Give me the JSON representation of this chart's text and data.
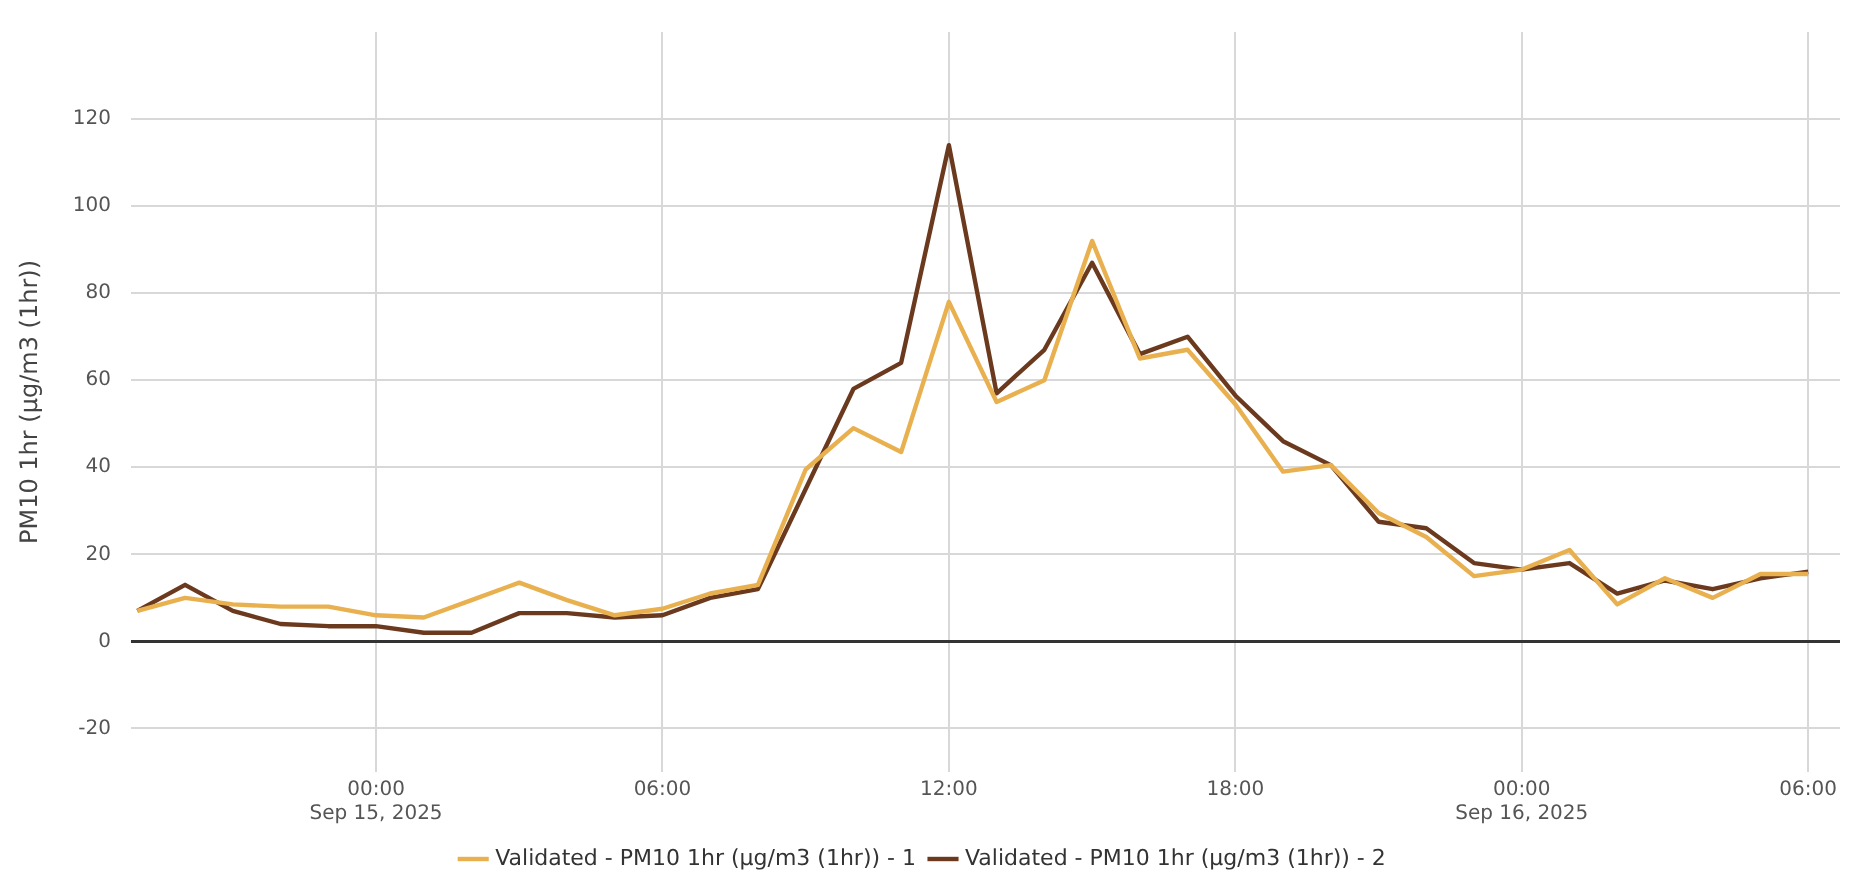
{
  "chart_data": {
    "type": "line",
    "ylabel": "PM10 1hr (µg/m3 (1hr))",
    "x": [
      "2025-09-14T19:00",
      "2025-09-14T20:00",
      "2025-09-14T21:00",
      "2025-09-14T22:00",
      "2025-09-14T23:00",
      "2025-09-15T00:00",
      "2025-09-15T01:00",
      "2025-09-15T02:00",
      "2025-09-15T03:00",
      "2025-09-15T04:00",
      "2025-09-15T05:00",
      "2025-09-15T06:00",
      "2025-09-15T07:00",
      "2025-09-15T08:00",
      "2025-09-15T09:00",
      "2025-09-15T10:00",
      "2025-09-15T11:00",
      "2025-09-15T12:00",
      "2025-09-15T13:00",
      "2025-09-15T14:00",
      "2025-09-15T15:00",
      "2025-09-15T16:00",
      "2025-09-15T17:00",
      "2025-09-15T18:00",
      "2025-09-15T19:00",
      "2025-09-15T20:00",
      "2025-09-15T21:00",
      "2025-09-15T22:00",
      "2025-09-15T23:00",
      "2025-09-16T00:00",
      "2025-09-16T01:00",
      "2025-09-16T02:00",
      "2025-09-16T03:00",
      "2025-09-16T04:00",
      "2025-09-16T05:00",
      "2025-09-16T06:00"
    ],
    "series": [
      {
        "name": "Validated - PM10 1hr (µg/m3 (1hr)) - 1",
        "color": "#e9b04f",
        "values": [
          7,
          10,
          8.5,
          8,
          8,
          6,
          5.5,
          9.5,
          13.5,
          9.5,
          6,
          7.5,
          11,
          13,
          39.5,
          49,
          43.5,
          78,
          55,
          60,
          92,
          65,
          67,
          54.5,
          39,
          40.5,
          29.5,
          24,
          15,
          16.5,
          21,
          8.5,
          14.5,
          10,
          15.5,
          15.5
        ]
      },
      {
        "name": "Validated - PM10 1hr (µg/m3 (1hr)) - 2",
        "color": "#6b3a1e",
        "values": [
          7,
          13,
          7,
          4,
          3.5,
          3.5,
          2,
          2,
          6.5,
          6.5,
          5.5,
          6,
          10,
          12,
          35,
          58,
          64,
          114,
          57,
          67,
          87,
          66,
          70,
          56.5,
          46,
          40.5,
          27.5,
          26,
          18,
          16.5,
          18,
          11,
          14,
          12,
          14.5,
          16
        ]
      }
    ],
    "xlim": [
      "2025-09-14T18:52",
      "2025-09-16T06:40"
    ],
    "xticks": [
      {
        "value": "2025-09-15T00:00",
        "label": "00:00\nSep 15, 2025"
      },
      {
        "value": "2025-09-15T06:00",
        "label": "06:00"
      },
      {
        "value": "2025-09-15T12:00",
        "label": "12:00"
      },
      {
        "value": "2025-09-15T18:00",
        "label": "18:00"
      },
      {
        "value": "2025-09-16T00:00",
        "label": "00:00\nSep 16, 2025"
      },
      {
        "value": "2025-09-16T06:00",
        "label": "06:00"
      }
    ],
    "ylim": [
      -30,
      140
    ],
    "yticks": [
      -20,
      0,
      20,
      40,
      60,
      80,
      100,
      120
    ],
    "ref_lines": [
      {
        "axis": "y",
        "value": 0,
        "color": "#333333"
      }
    ],
    "grid": true,
    "legend": "bottom",
    "marker": "none",
    "line_style": "solid"
  }
}
